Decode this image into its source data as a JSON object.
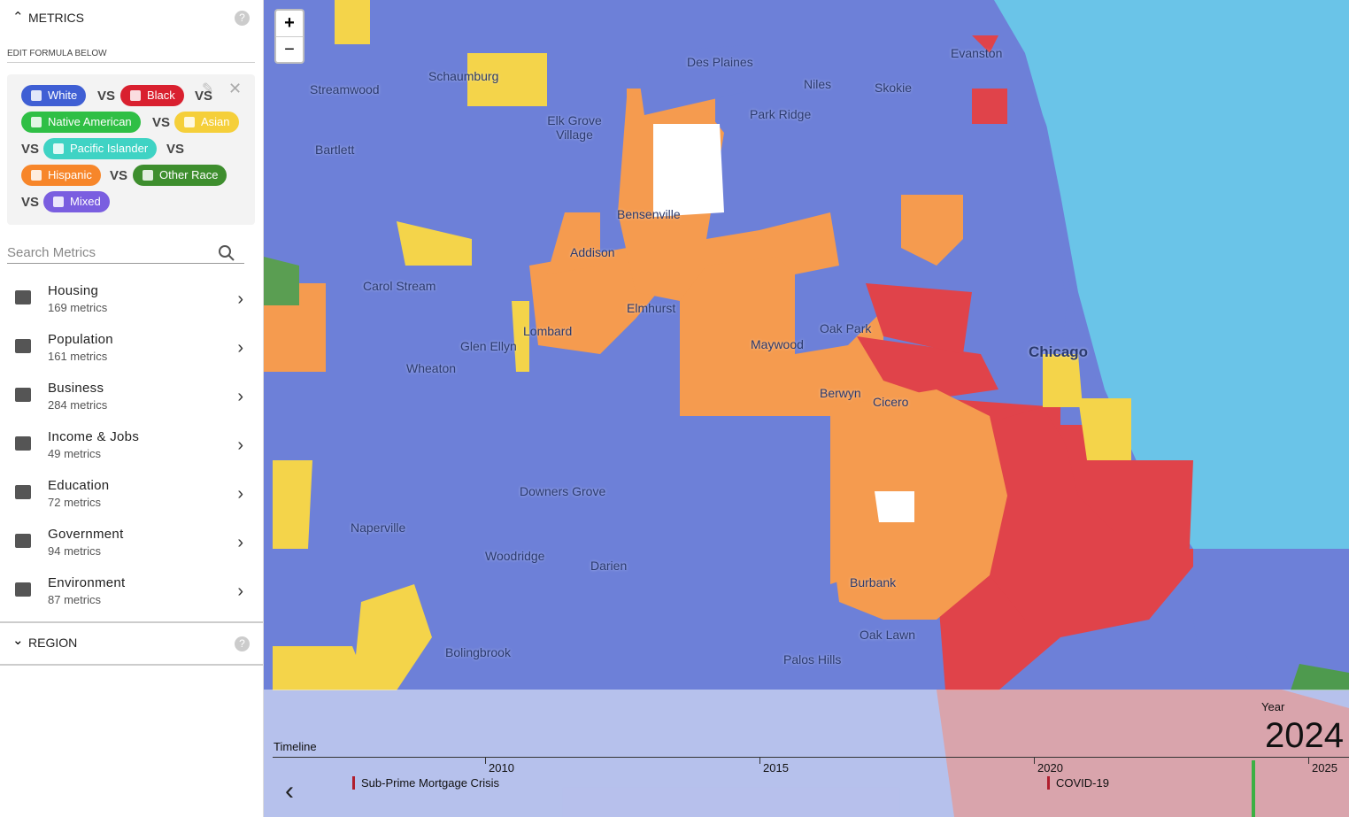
{
  "sidebar": {
    "metrics_header": "METRICS",
    "formula_label": "EDIT FORMULA BELOW",
    "separator": "VS",
    "chips": [
      {
        "label": "White",
        "color": "#3f5fd4"
      },
      {
        "label": "Black",
        "color": "#d9202f"
      },
      {
        "label": "Native American",
        "color": "#2fbf45"
      },
      {
        "label": "Asian",
        "color": "#f5cf3a"
      },
      {
        "label": "Pacific Islander",
        "color": "#3fd3c4"
      },
      {
        "label": "Hispanic",
        "color": "#f7862a"
      },
      {
        "label": "Other Race",
        "color": "#3e8e2e"
      },
      {
        "label": "Mixed",
        "color": "#7a5ee0"
      }
    ],
    "search_placeholder": "Search Metrics",
    "categories": [
      {
        "name": "Housing",
        "count": "169 metrics"
      },
      {
        "name": "Population",
        "count": "161 metrics"
      },
      {
        "name": "Business",
        "count": "284 metrics"
      },
      {
        "name": "Income & Jobs",
        "count": "49 metrics"
      },
      {
        "name": "Education",
        "count": "72 metrics"
      },
      {
        "name": "Government",
        "count": "94 metrics"
      },
      {
        "name": "Environment",
        "count": "87 metrics"
      }
    ],
    "region_header": "REGION"
  },
  "map": {
    "zoom_in": "+",
    "zoom_out": "−",
    "places": [
      "Des Plaines",
      "Evanston",
      "Schaumburg",
      "Streamwood",
      "Niles",
      "Skokie",
      "Park Ridge",
      "Elk Grove Village",
      "Bartlett",
      "Bensenville",
      "Addison",
      "Carol Stream",
      "Elmhurst",
      "Oak Park",
      "Lombard",
      "Glen Ellyn",
      "Maywood",
      "Chicago",
      "Wheaton",
      "Berwyn",
      "Cicero",
      "Downers Grove",
      "Naperville",
      "Woodridge",
      "Darien",
      "Burbank",
      "Oak Lawn",
      "Bolingbrook",
      "Palos Hills"
    ]
  },
  "timeline": {
    "title": "Timeline",
    "ticks": [
      2010,
      2015,
      2020,
      2025
    ],
    "events": [
      "Sub-Prime Mortgage Crisis",
      "COVID-19"
    ],
    "year_label": "Year",
    "year": 2024
  }
}
